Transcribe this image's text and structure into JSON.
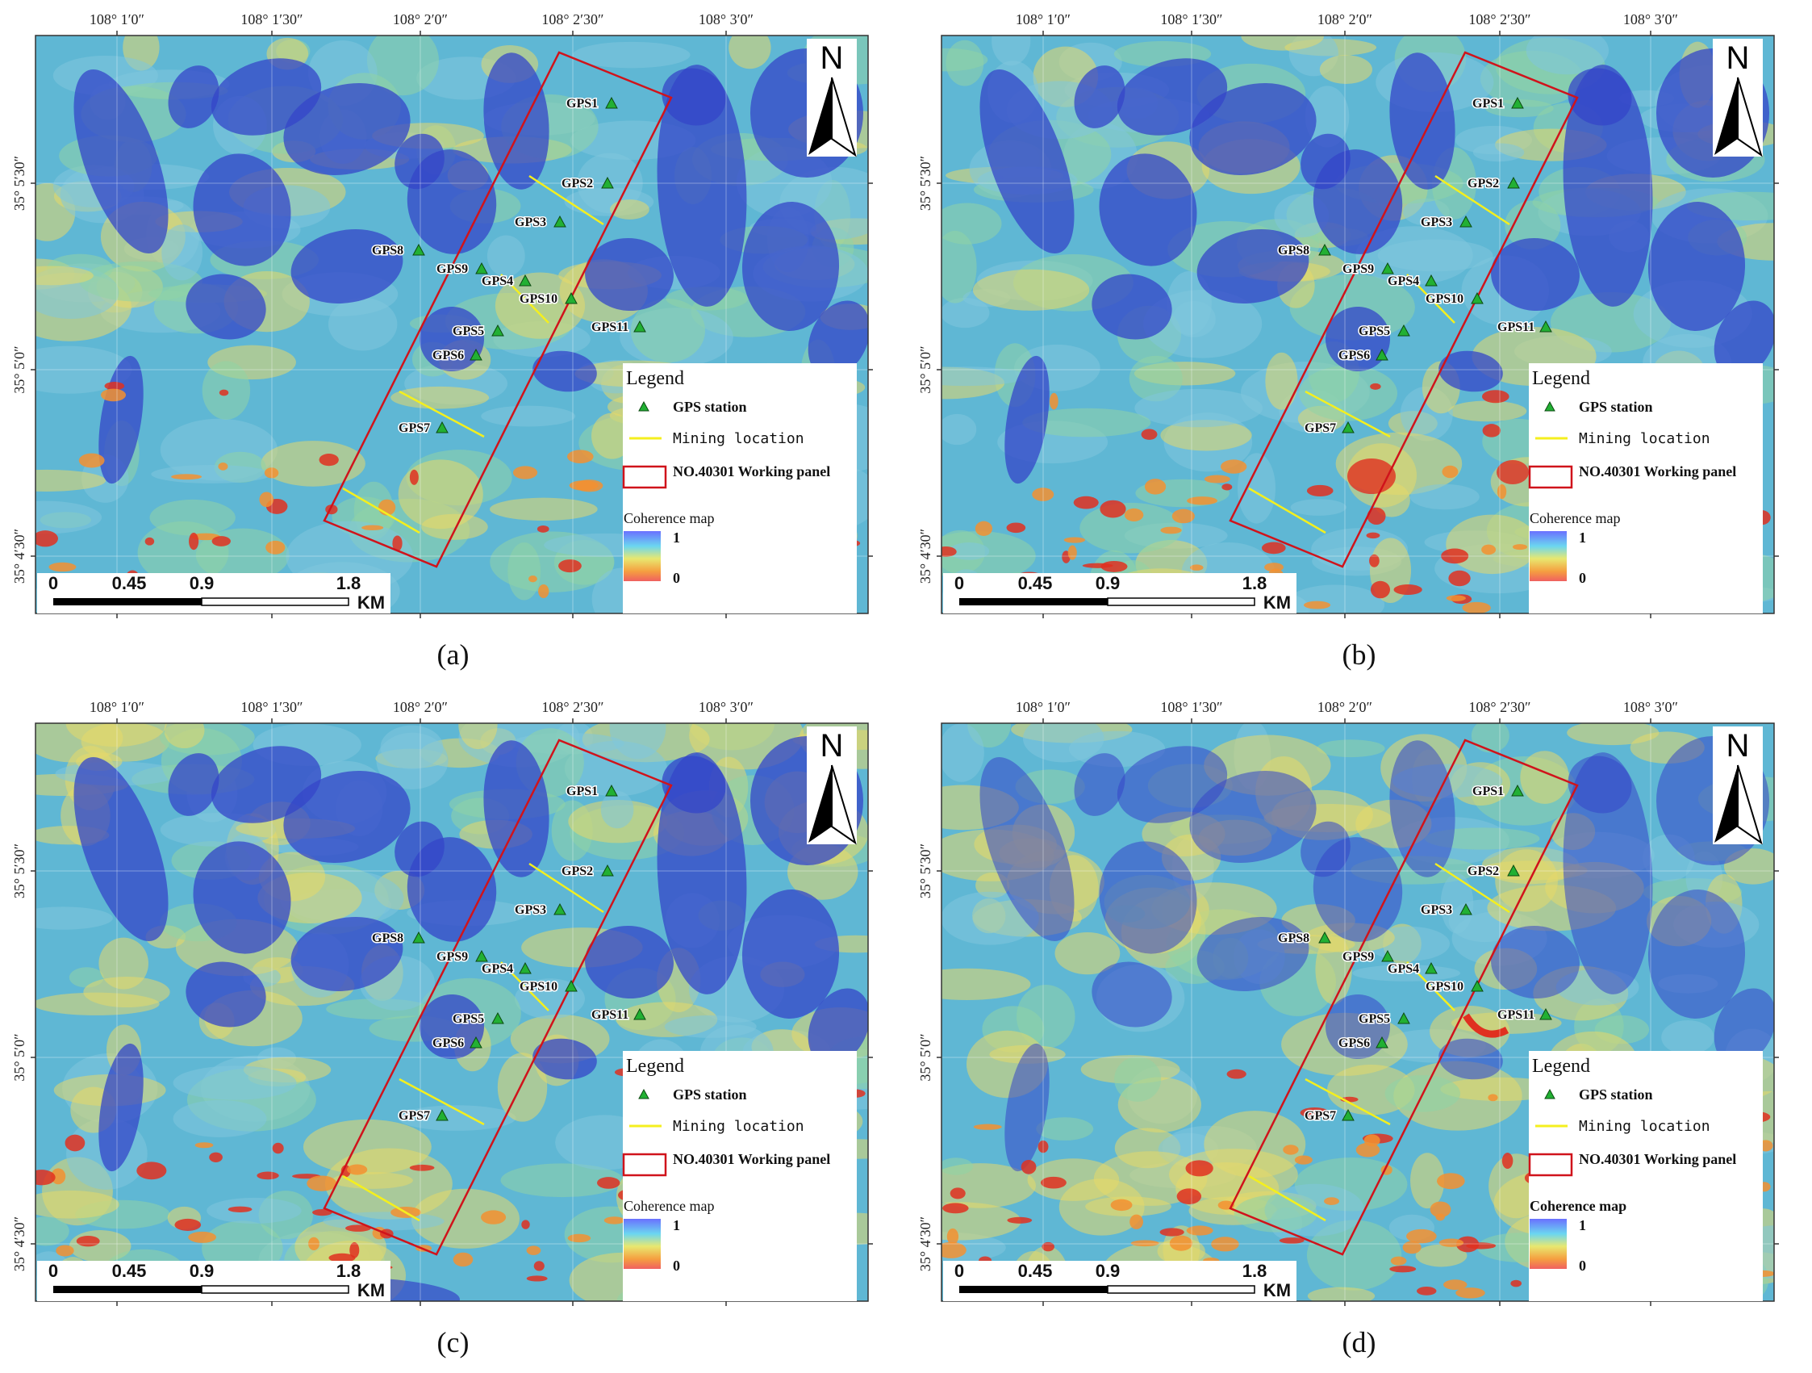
{
  "panels": [
    {
      "id": "a",
      "caption": "(a)",
      "grid": "A",
      "variant": 0
    },
    {
      "id": "b",
      "caption": "(b)",
      "grid": "B",
      "variant": 1
    },
    {
      "id": "c",
      "caption": "(c)",
      "grid": "A",
      "variant": 2
    },
    {
      "id": "d",
      "caption": "(d)",
      "grid": "B",
      "variant": 3
    }
  ],
  "lon_labels": [
    "108° 1′0″",
    "108° 1′30″",
    "108° 2′0″",
    "108° 2′30″",
    "108° 3′0″"
  ],
  "lat_labels": [
    "35° 5′30″",
    "35° 5′0″",
    "35° 4′30″"
  ],
  "north_label": "N",
  "scale_bar": {
    "ticks": [
      "0",
      "0.45",
      "0.9",
      "1.8"
    ],
    "unit": "KM"
  },
  "legend": {
    "title": "Legend",
    "gps_label": "GPS station",
    "mining_label": "Mining location",
    "panel_label": "NO.40301 Working panel",
    "coherence_title": "Coherence map",
    "coherence_max": "1",
    "coherence_min": "0"
  },
  "gps_stations": [
    "GPS1",
    "GPS2",
    "GPS3",
    "GPS4",
    "GPS5",
    "GPS6",
    "GPS7",
    "GPS8",
    "GPS9",
    "GPS10",
    "GPS11"
  ],
  "colors": {
    "working_panel": "#d0131b",
    "mining_line": "#f4ef1e",
    "gps_marker": "#22b033",
    "map_base": "#5fb7d4",
    "high_coherence": "#3446c8",
    "low_coherence": "#e03020"
  }
}
